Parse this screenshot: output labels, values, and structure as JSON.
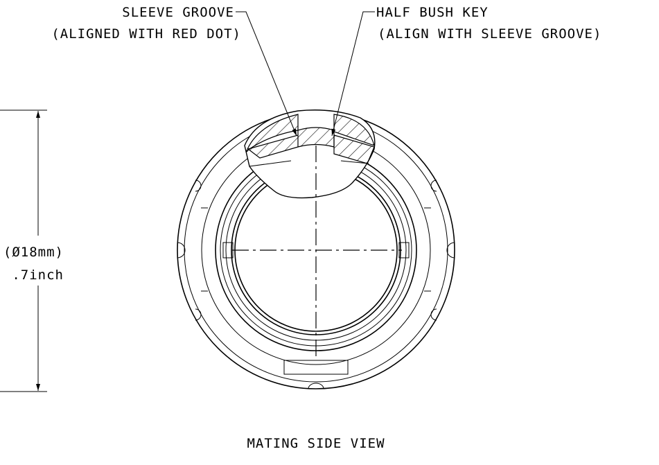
{
  "callouts": [
    {
      "lines": [
        "SLEEVE GROOVE",
        "(ALIGNED WITH RED DOT)"
      ]
    },
    {
      "lines": [
        "HALF BUSH KEY",
        "(ALIGN WITH SLEEVE GROOVE)"
      ]
    }
  ],
  "dimension": {
    "lines": [
      "(Ø18mm)",
      ".7inch"
    ]
  },
  "caption": "MATING SIDE VIEW"
}
